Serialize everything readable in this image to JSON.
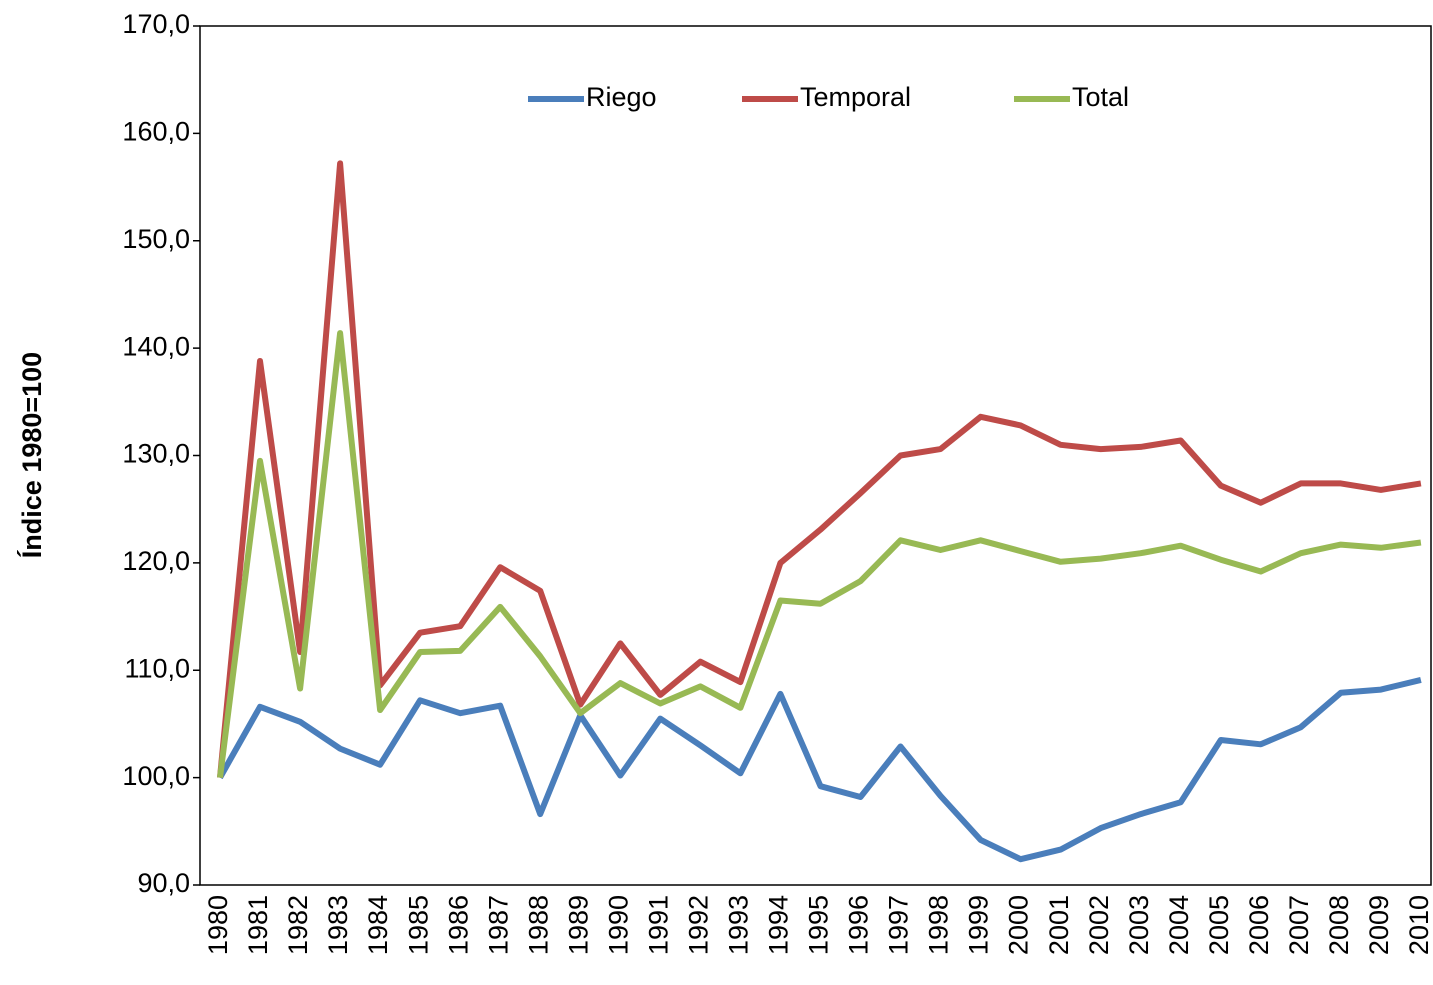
{
  "chart_data": {
    "type": "line",
    "y_axis_label": "Índice 1980=100",
    "categories": [
      "1980",
      "1981",
      "1982",
      "1983",
      "1984",
      "1985",
      "1986",
      "1987",
      "1988",
      "1989",
      "1990",
      "1991",
      "1992",
      "1993",
      "1994",
      "1995",
      "1996",
      "1997",
      "1998",
      "1999",
      "2000",
      "2001",
      "2002",
      "2003",
      "2004",
      "2005",
      "2006",
      "2007",
      "2008",
      "2009",
      "2010"
    ],
    "series": [
      {
        "name": "Riego",
        "color": "#4a7ebb",
        "values": [
          100,
          106.6,
          105.2,
          102.7,
          101.2,
          107.2,
          106.0,
          106.7,
          96.6,
          105.8,
          100.2,
          105.5,
          103.0,
          100.4,
          107.8,
          99.2,
          98.2,
          102.9,
          98.3,
          94.2,
          92.4,
          93.3,
          95.3,
          96.6,
          97.7,
          103.5,
          103.1,
          104.7,
          107.9,
          108.2,
          109.1
        ]
      },
      {
        "name": "Temporal",
        "color": "#be4b48",
        "values": [
          100,
          138.8,
          111.7,
          157.2,
          108.6,
          113.5,
          114.1,
          119.6,
          117.4,
          106.8,
          112.5,
          107.7,
          110.8,
          108.9,
          120.0,
          123.1,
          126.5,
          130.0,
          130.6,
          133.6,
          132.8,
          131.0,
          130.6,
          130.8,
          131.4,
          127.2,
          125.6,
          127.4,
          127.4,
          126.8,
          127.4
        ]
      },
      {
        "name": "Total",
        "color": "#98b954",
        "values": [
          100,
          129.5,
          108.3,
          141.4,
          106.3,
          111.7,
          111.8,
          115.9,
          111.3,
          106.0,
          108.8,
          106.9,
          108.5,
          106.5,
          116.5,
          116.2,
          118.3,
          122.1,
          121.2,
          122.1,
          121.1,
          120.1,
          120.4,
          120.9,
          121.6,
          120.3,
          119.2,
          120.9,
          121.7,
          121.4,
          121.9
        ]
      }
    ],
    "ylim": [
      90,
      170
    ],
    "yticks": [
      {
        "value": 90,
        "label": "90,0"
      },
      {
        "value": 100,
        "label": "100,0"
      },
      {
        "value": 110,
        "label": "110,0"
      },
      {
        "value": 120,
        "label": "120,0"
      },
      {
        "value": 130,
        "label": "130,0"
      },
      {
        "value": 140,
        "label": "140,0"
      },
      {
        "value": 150,
        "label": "150,0"
      },
      {
        "value": 160,
        "label": "160,0"
      },
      {
        "value": 170,
        "label": "170,0"
      }
    ],
    "legend": "top",
    "grid": false
  }
}
